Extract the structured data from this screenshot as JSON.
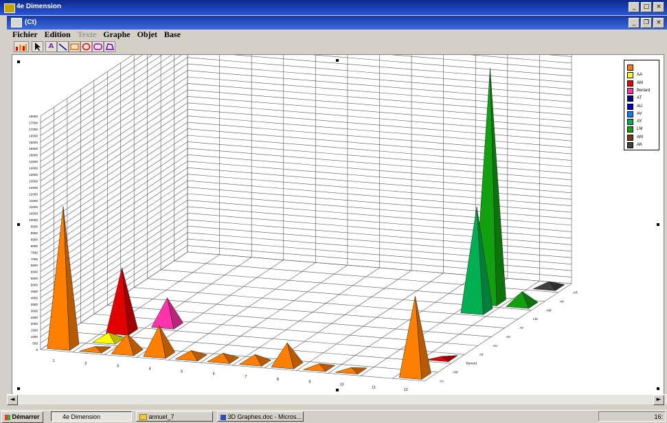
{
  "outer_window": {
    "title": "4e Dimension"
  },
  "inner_window": {
    "title": "(Ct)"
  },
  "menubar": [
    {
      "label": "Fichier",
      "disabled": false
    },
    {
      "label": "Edition",
      "disabled": false
    },
    {
      "label": "Texte",
      "disabled": true
    },
    {
      "label": "Graphe",
      "disabled": false
    },
    {
      "label": "Objet",
      "disabled": false
    },
    {
      "label": "Base",
      "disabled": false
    }
  ],
  "toolbar": [
    {
      "name": "chart-tool-icon"
    },
    {
      "name": "arrow-tool-icon"
    },
    {
      "name": "text-tool-icon"
    },
    {
      "name": "line-tool-icon"
    },
    {
      "name": "rectangle-tool-icon"
    },
    {
      "name": "oval-tool-icon"
    },
    {
      "name": "rounded-rect-tool-icon"
    },
    {
      "name": "polygon-tool-icon"
    }
  ],
  "chart_data": {
    "type": "bar",
    "style": "3d-pyramid",
    "grid": true,
    "legend_position": "top-right",
    "ylim": [
      0,
      18000
    ],
    "yticks": [
      0,
      500,
      1000,
      1500,
      2000,
      2500,
      3000,
      3500,
      4000,
      4500,
      5000,
      5500,
      6000,
      6500,
      7000,
      7500,
      8000,
      8500,
      9000,
      9500,
      10000,
      10500,
      11000,
      11500,
      12000,
      12500,
      13000,
      13500,
      14000,
      14500,
      15000,
      15500,
      16000,
      16500,
      17000,
      17500,
      18000
    ],
    "categories": [
      "1",
      "2",
      "3",
      "4",
      "5",
      "6",
      "7",
      "8",
      "9",
      "10",
      "11",
      "12"
    ],
    "series": [
      {
        "name": "",
        "color": "#ff7f00",
        "values": [
          10800,
          200,
          1400,
          2200,
          500,
          500,
          600,
          1700,
          300,
          200,
          0,
          6100
        ]
      },
      {
        "name": "AA",
        "color": "#ffff00",
        "values": [
          0,
          600,
          0,
          0,
          0,
          0,
          0,
          0,
          0,
          0,
          0,
          0
        ]
      },
      {
        "name": "AM",
        "color": "#e00000",
        "values": [
          0,
          4900,
          0,
          0,
          0,
          0,
          0,
          0,
          0,
          0,
          0,
          100
        ]
      },
      {
        "name": "Benard",
        "color": "#ff33aa",
        "values": [
          0,
          0,
          2100,
          0,
          0,
          0,
          0,
          0,
          0,
          0,
          0,
          0
        ]
      },
      {
        "name": "AT",
        "color": "#000080",
        "values": [
          0,
          0,
          0,
          0,
          0,
          0,
          0,
          0,
          0,
          0,
          0,
          0
        ]
      },
      {
        "name": "AU",
        "color": "#0000cc",
        "values": [
          0,
          0,
          0,
          0,
          0,
          0,
          0,
          0,
          0,
          0,
          0,
          0
        ]
      },
      {
        "name": "AV",
        "color": "#0080ff",
        "values": [
          0,
          0,
          0,
          0,
          0,
          0,
          0,
          0,
          0,
          0,
          0,
          0
        ]
      },
      {
        "name": "AY",
        "color": "#00b050",
        "values": [
          0,
          0,
          0,
          0,
          0,
          0,
          0,
          0,
          0,
          0,
          8000,
          0
        ]
      },
      {
        "name": "LM",
        "color": "#10a010",
        "values": [
          0,
          0,
          0,
          0,
          0,
          0,
          0,
          0,
          0,
          0,
          18000,
          1000
        ]
      },
      {
        "name": "AM",
        "color": "#7a3a00",
        "values": [
          0,
          0,
          0,
          0,
          0,
          0,
          0,
          0,
          0,
          0,
          0,
          0
        ]
      },
      {
        "name": "AK",
        "color": "#404040",
        "values": [
          0,
          0,
          0,
          0,
          0,
          0,
          0,
          0,
          0,
          0,
          0,
          400
        ]
      }
    ],
    "depth_tick_labels": [
      "AA",
      "AM",
      "Benard",
      "AT",
      "AU",
      "AV",
      "AY",
      "LM",
      "AM",
      "AK",
      "AR"
    ]
  },
  "hscroll": {
    "left": "◄",
    "right": "►"
  },
  "taskbar": {
    "start": "Démarrer",
    "tasks": [
      "4e Dimension",
      "annuel_7",
      "3D Graphes.doc - Micros..."
    ],
    "clock": "16:"
  }
}
